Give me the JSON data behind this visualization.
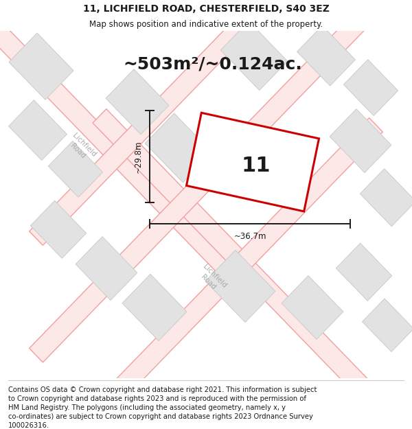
{
  "title": "11, LICHFIELD ROAD, CHESTERFIELD, S40 3EZ",
  "subtitle": "Map shows position and indicative extent of the property.",
  "area_label": "~503m²/~0.124ac.",
  "property_number": "11",
  "dim_width": "~36.7m",
  "dim_height": "~29.8m",
  "footer_lines": [
    "Contains OS data © Crown copyright and database right 2021. This information is subject",
    "to Crown copyright and database rights 2023 and is reproduced with the permission of",
    "HM Land Registry. The polygons (including the associated geometry, namely x, y",
    "co-ordinates) are subject to Crown copyright and database rights 2023 Ordnance Survey",
    "100026316."
  ],
  "bg_color": "#ffffff",
  "road_line_color": "#f0a0a0",
  "road_fill_color": "#fde8e8",
  "block_color": "#e2e2e2",
  "block_edge_color": "#cccccc",
  "property_edge_color": "#cc0000",
  "dim_color": "#1a1a1a",
  "title_color": "#1a1a1a",
  "road_label_color": "#aaaaaa",
  "footer_color": "#1a1a1a",
  "title_fontsize": 10,
  "subtitle_fontsize": 8.5,
  "area_fontsize": 18,
  "property_num_fontsize": 22,
  "dim_fontsize": 8.5,
  "road_label_fontsize": 7.5,
  "footer_fontsize": 7.2,
  "road_linewidth": 1.0,
  "property_linewidth": 2.2,
  "dim_linewidth": 1.4
}
